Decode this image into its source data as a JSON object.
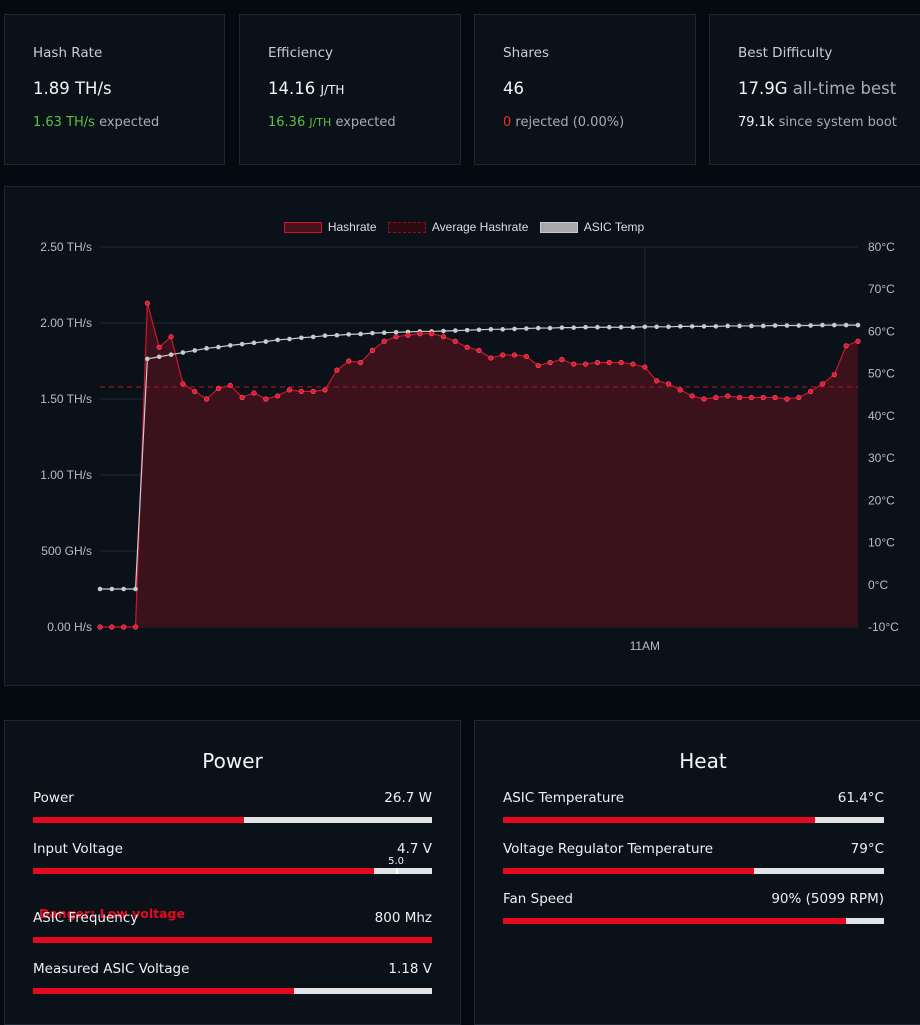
{
  "stats": [
    {
      "label": "Hash Rate",
      "value": "1.89 TH/s",
      "sub_value": "1.63 TH/s",
      "sub_text": " expected"
    },
    {
      "label": "Efficiency",
      "value_num": "14.16",
      "value_unit": "J/TH",
      "sub_num": "16.36",
      "sub_unit": "J/TH",
      "sub_text": " expected"
    },
    {
      "label": "Shares",
      "value": "46",
      "sub_value": "0",
      "sub_text": " rejected (0.00%)"
    },
    {
      "label": "Best Difficulty",
      "value": "17.9G",
      "value_suffix": " all-time best",
      "sub_value": "79.1k",
      "sub_text": " since system boot"
    }
  ],
  "chart_data": {
    "type": "line",
    "legend": [
      "Hashrate",
      "Average Hashrate",
      "ASIC Temp"
    ],
    "x_ticks": [
      "11AM"
    ],
    "x_tick_index": 46,
    "y_left_ticks": [
      "0.00 H/s",
      "500 GH/s",
      "1.00 TH/s",
      "1.50 TH/s",
      "2.00 TH/s",
      "2.50 TH/s"
    ],
    "y_left_range_ths": [
      0,
      2.5
    ],
    "y_right_ticks": [
      "-10°C",
      "0°C",
      "10°C",
      "20°C",
      "30°C",
      "40°C",
      "50°C",
      "60°C",
      "70°C",
      "80°C"
    ],
    "y_right_range_c": [
      -10,
      80
    ],
    "average_hashrate_ths": 1.58,
    "series": [
      {
        "name": "Hashrate",
        "unit": "TH/s",
        "values": [
          0,
          0,
          0,
          0,
          2.13,
          1.84,
          1.91,
          1.6,
          1.55,
          1.5,
          1.57,
          1.59,
          1.51,
          1.54,
          1.5,
          1.52,
          1.56,
          1.55,
          1.55,
          1.56,
          1.69,
          1.75,
          1.74,
          1.82,
          1.88,
          1.91,
          1.92,
          1.93,
          1.93,
          1.91,
          1.88,
          1.84,
          1.82,
          1.77,
          1.79,
          1.79,
          1.78,
          1.72,
          1.74,
          1.76,
          1.73,
          1.73,
          1.74,
          1.74,
          1.74,
          1.73,
          1.71,
          1.62,
          1.6,
          1.56,
          1.52,
          1.5,
          1.51,
          1.52,
          1.51,
          1.51,
          1.51,
          1.51,
          1.5,
          1.51,
          1.55,
          1.6,
          1.66,
          1.85,
          1.88
        ]
      },
      {
        "name": "ASIC Temp",
        "unit": "°C",
        "values": [
          -1,
          -1,
          -1,
          -1,
          53.5,
          54,
          54.5,
          55,
          55.5,
          56,
          56.3,
          56.7,
          57,
          57.3,
          57.6,
          58,
          58.2,
          58.5,
          58.7,
          59,
          59.1,
          59.3,
          59.4,
          59.6,
          59.7,
          59.8,
          59.9,
          60,
          60,
          60.1,
          60.2,
          60.3,
          60.4,
          60.5,
          60.5,
          60.6,
          60.7,
          60.8,
          60.8,
          60.9,
          60.9,
          61,
          61,
          61,
          61,
          61,
          61.1,
          61.1,
          61.1,
          61.2,
          61.2,
          61.2,
          61.2,
          61.3,
          61.3,
          61.3,
          61.3,
          61.4,
          61.4,
          61.4,
          61.4,
          61.5,
          61.5,
          61.5,
          61.5
        ]
      }
    ]
  },
  "power": {
    "title": "Power",
    "metrics": [
      {
        "label": "Power",
        "value": "26.7 W",
        "fill_pct": 53
      },
      {
        "label": "Input Voltage",
        "value": "4.7 V",
        "fill_pct": 85.5,
        "marker_label": "5.0",
        "marker_pct": 91,
        "warning": "Danger: Low voltage"
      },
      {
        "label": "ASIC Frequency",
        "value": "800 Mhz",
        "fill_pct": 100
      },
      {
        "label": "Measured ASIC Voltage",
        "value": "1.18 V",
        "fill_pct": 65.5
      }
    ]
  },
  "heat": {
    "title": "Heat",
    "metrics": [
      {
        "label": "ASIC Temperature",
        "value": "61.4°C",
        "fill_pct": 82
      },
      {
        "label": "Voltage Regulator Temperature",
        "value": "79°C",
        "fill_pct": 66
      },
      {
        "label": "Fan Speed",
        "value": "90% (5099 RPM)",
        "fill_pct": 90
      }
    ]
  },
  "colors": {
    "accent": "#e5091f",
    "good": "#5fbf3f",
    "track": "#e1e3e6",
    "temp_line": "#c9cbce"
  }
}
